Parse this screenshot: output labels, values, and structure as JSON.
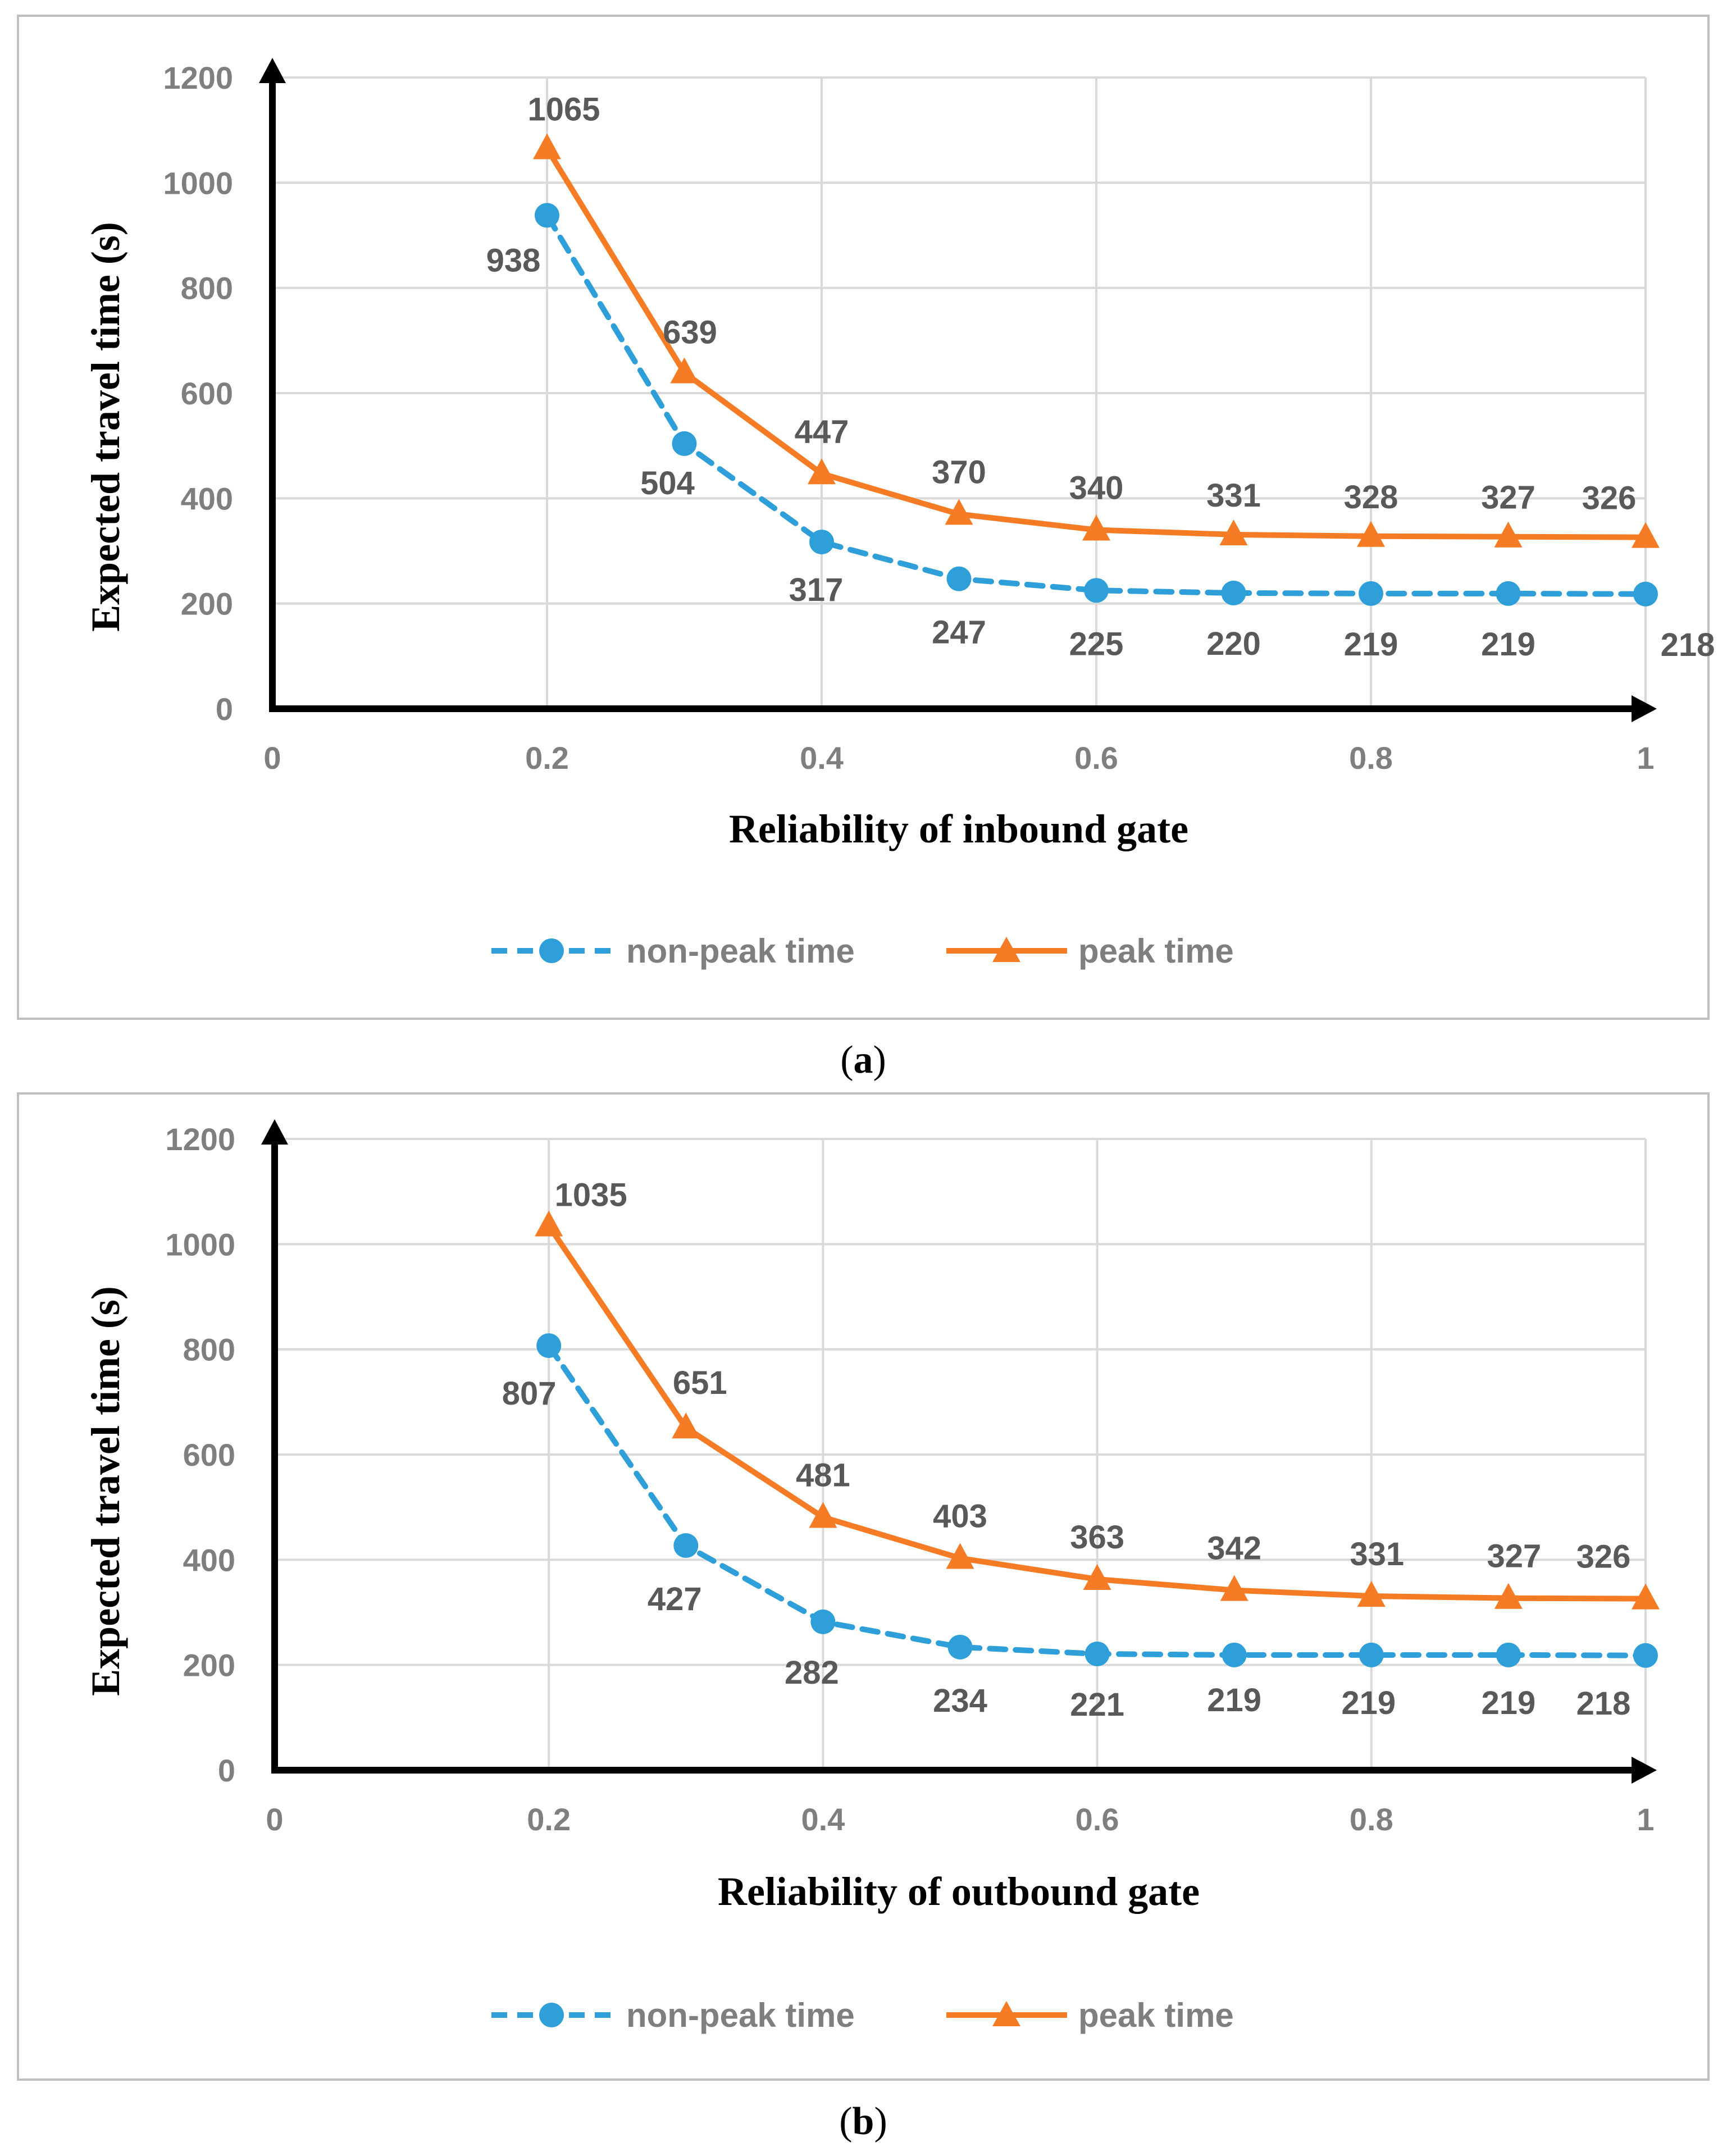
{
  "colors": {
    "non_peak": "#2e9fd8",
    "peak": "#f57c24",
    "grid": "#d9d9d9",
    "axis": "#000000",
    "frame": "#bfbfbf"
  },
  "chart_data": [
    {
      "type": "line",
      "panel": "a",
      "xlabel": "Reliability of inbound gate",
      "ylabel": "Expected travel time (s)",
      "xlim": [
        0,
        1
      ],
      "ylim": [
        0,
        1200
      ],
      "x_ticks": [
        "0",
        "0.2",
        "0.4",
        "0.6",
        "0.8",
        "1"
      ],
      "y_ticks": [
        "0",
        "200",
        "400",
        "600",
        "800",
        "1000",
        "1200"
      ],
      "grid": true,
      "legend_position": "bottom",
      "x": [
        0.2,
        0.3,
        0.4,
        0.5,
        0.6,
        0.7,
        0.8,
        0.9,
        1.0
      ],
      "series": [
        {
          "name": "non-peak time",
          "style": "dashed",
          "marker": "circle",
          "values": [
            938,
            504,
            317,
            247,
            225,
            220,
            219,
            219,
            218
          ]
        },
        {
          "name": "peak time",
          "style": "solid",
          "marker": "triangle",
          "values": [
            1065,
            639,
            447,
            370,
            340,
            331,
            328,
            327,
            326
          ]
        }
      ]
    },
    {
      "type": "line",
      "panel": "b",
      "xlabel": "Reliability of outbound gate",
      "ylabel": "Expected travel time (s)",
      "xlim": [
        0,
        1
      ],
      "ylim": [
        0,
        1200
      ],
      "x_ticks": [
        "0",
        "0.2",
        "0.4",
        "0.6",
        "0.8",
        "1"
      ],
      "y_ticks": [
        "0",
        "200",
        "400",
        "600",
        "800",
        "1000",
        "1200"
      ],
      "grid": true,
      "legend_position": "bottom",
      "x": [
        0.2,
        0.3,
        0.4,
        0.5,
        0.6,
        0.7,
        0.8,
        0.9,
        1.0
      ],
      "series": [
        {
          "name": "non-peak time",
          "style": "dashed",
          "marker": "circle",
          "values": [
            807,
            427,
            282,
            234,
            221,
            219,
            219,
            219,
            218
          ]
        },
        {
          "name": "peak time",
          "style": "solid",
          "marker": "triangle",
          "values": [
            1035,
            651,
            481,
            403,
            363,
            342,
            331,
            327,
            326
          ]
        }
      ]
    }
  ],
  "captions": {
    "a": {
      "open": "(",
      "letter": "a",
      "close": ")"
    },
    "b": {
      "open": "(",
      "letter": "b",
      "close": ")"
    }
  }
}
